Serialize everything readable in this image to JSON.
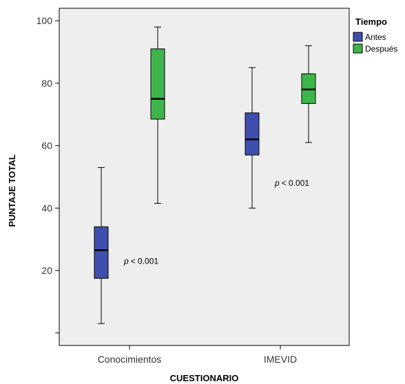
{
  "chart_data": {
    "type": "boxplot",
    "xlabel": "CUESTIONARIO",
    "ylabel": "PUNTAJE TOTAL",
    "ylim": [
      -4,
      104
    ],
    "yticks": [
      {
        "value": 0,
        "label": ""
      },
      {
        "value": 20,
        "label": "20"
      },
      {
        "value": 40,
        "label": "40"
      },
      {
        "value": 60,
        "label": "60"
      },
      {
        "value": 80,
        "label": "80"
      },
      {
        "value": 100,
        "label": "100"
      }
    ],
    "categories": [
      "Conocimientos",
      "IMEVID"
    ],
    "legend": {
      "title": "Tiempo",
      "position": "right",
      "items": [
        {
          "label": "Antes",
          "color": "#3F4FAE"
        },
        {
          "label": "Después",
          "color": "#3DB54A"
        }
      ]
    },
    "series": [
      {
        "name": "Antes",
        "color": "#3F4FAE",
        "boxes": [
          {
            "whisker_low": 3,
            "q1": 17.5,
            "median": 26.5,
            "q3": 34,
            "whisker_high": 53
          },
          {
            "whisker_low": 40,
            "q1": 57,
            "median": 62,
            "q3": 70.5,
            "whisker_high": 85
          }
        ]
      },
      {
        "name": "Después",
        "color": "#3DB54A",
        "boxes": [
          {
            "whisker_low": 41.5,
            "q1": 68.5,
            "median": 75,
            "q3": 91,
            "whisker_high": 98
          },
          {
            "whisker_low": 61,
            "q1": 73.5,
            "median": 78,
            "q3": 83,
            "whisker_high": 92
          }
        ]
      }
    ],
    "annotations": [
      {
        "p": "p",
        "text": "< 0.001",
        "category": "Conocimientos",
        "y": 23
      },
      {
        "p": "p",
        "text": "< 0.001",
        "category": "IMEVID",
        "y": 48
      }
    ],
    "plot_background": "#EEEEEE",
    "grid": false
  }
}
